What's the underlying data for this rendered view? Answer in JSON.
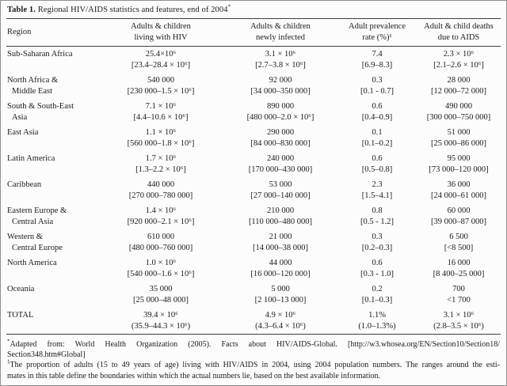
{
  "colors": {
    "ink": "#1b1b1b",
    "rule": "#3e3e3e",
    "background": "#fcfcfc",
    "border": "#8f8f8f"
  },
  "title": {
    "label": "Table 1.",
    "text": " Regional HIV/AIDS statistics and features, end of 2004",
    "marker": "*"
  },
  "columns": [
    {
      "lines": [
        "Region"
      ]
    },
    {
      "lines": [
        "Adults & children",
        "living with HIV"
      ]
    },
    {
      "lines": [
        "Adults & children",
        "newly infected"
      ]
    },
    {
      "lines": [
        "Adult prevalence",
        "rate (%)¹"
      ]
    },
    {
      "lines": [
        "Adult & child deaths",
        "due to AIDS"
      ]
    }
  ],
  "table": {
    "rows": [
      {
        "region": [
          "Sub-Saharan Africa"
        ],
        "living": [
          "25.4×10⁶",
          "[23.4–28.4 × 10⁶]"
        ],
        "infected": [
          "3.1 × 10⁶",
          "[2.7–3.8 × 10⁶]"
        ],
        "prevalence": [
          "7.4",
          "[6.9–8.3]"
        ],
        "deaths": [
          "2.3 × 10⁶",
          "[2.1–2.6 × 10⁶]"
        ]
      },
      {
        "region": [
          "North Africa &",
          "Middle East"
        ],
        "living": [
          "540 000",
          "[230 000–1.5 × 10⁶]"
        ],
        "infected": [
          "92 000",
          "[34 000–350 000]"
        ],
        "prevalence": [
          "0.3",
          "[0.1 - 0.7]"
        ],
        "deaths": [
          "28 000",
          "[12 000–72 000]"
        ]
      },
      {
        "region": [
          "South & South-East",
          "Asia"
        ],
        "living": [
          "7.1 × 10⁶",
          "[4.4–10.6 × 10⁶]"
        ],
        "infected": [
          "890 000",
          "[480 000–2.0 × 10⁶]"
        ],
        "prevalence": [
          "0.6",
          "[0.4–0.9]"
        ],
        "deaths": [
          "490 000",
          "[300 000–750 000]"
        ]
      },
      {
        "region": [
          "East Asia"
        ],
        "living": [
          "1.1 × 10⁶",
          "[560 000–1.8 × 10⁶]"
        ],
        "infected": [
          "290 000",
          "[84 000–830 000]"
        ],
        "prevalence": [
          "0.1",
          "[0.1–0.2]"
        ],
        "deaths": [
          "51 000",
          "[25 000–86 000]"
        ]
      },
      {
        "region": [
          "Latin America"
        ],
        "living": [
          "1.7 × 10⁶",
          "[1.3–2.2 × 10⁶]"
        ],
        "infected": [
          "240 000",
          "[170 000–430 000]"
        ],
        "prevalence": [
          "0.6",
          "[0.5–0.8]"
        ],
        "deaths": [
          "95 000",
          "[73 000–120 000]"
        ]
      },
      {
        "region": [
          "Caribbean"
        ],
        "living": [
          "440 000",
          "[270 000–780 000]"
        ],
        "infected": [
          "53 000",
          "[27 000–140 000]"
        ],
        "prevalence": [
          "2.3",
          "[1.5–4.1]"
        ],
        "deaths": [
          "36 000",
          "[24 000–61 000]"
        ]
      },
      {
        "region": [
          "Eastern Europe &",
          "Central Asia"
        ],
        "living": [
          "1.4 × 10⁶",
          "[920 000–2.1 × 10⁶]"
        ],
        "infected": [
          "210 000",
          "[110 000–480 000]"
        ],
        "prevalence": [
          "0.8",
          "[0.5 - 1.2]"
        ],
        "deaths": [
          "60 000",
          "[39 000–87 000]"
        ]
      },
      {
        "region": [
          "Western &",
          "Central Europe"
        ],
        "living": [
          "610 000",
          "[480 000–760 000]"
        ],
        "infected": [
          "21 000",
          "[14 000–38 000]"
        ],
        "prevalence": [
          "0.3",
          "[0.2–0.3]"
        ],
        "deaths": [
          "6 500",
          "[<8 500]"
        ]
      },
      {
        "region": [
          "North America"
        ],
        "living": [
          "1.0 × 10⁶",
          "[540 000–1.6 × 10⁶]"
        ],
        "infected": [
          "44 000",
          "[16 000–120 000]"
        ],
        "prevalence": [
          "0.6",
          "[0.3 - 1.0]"
        ],
        "deaths": [
          "16 000",
          "[8 400–25 000]"
        ]
      },
      {
        "region": [
          "Oceania"
        ],
        "living": [
          "35 000",
          "[25 000–48 000]"
        ],
        "infected": [
          "5 000",
          "[2 100–13 000]"
        ],
        "prevalence": [
          "0.2",
          "[0.1–0.3]"
        ],
        "deaths": [
          "700",
          "<1 700"
        ]
      },
      {
        "region": [
          "TOTAL"
        ],
        "living": [
          "39.4 × 10⁶",
          "(35.9–44.3 × 10⁶)"
        ],
        "infected": [
          "4.9 × 10⁶",
          "(4.3–6.4 × 10⁶)"
        ],
        "prevalence": [
          "1.1%",
          "(1.0–1.3%)"
        ],
        "deaths": [
          "3.1 × 10⁶",
          "(2.8–3.5 × 10⁶)"
        ]
      }
    ]
  },
  "footnotes": [
    {
      "marker": "*",
      "lines": [
        "Adapted from: World Health Organization (2005). Facts about HIV/AIDS-Global. [http://w3.whosea.org/EN/Section10/Section18/",
        "Section348.htm#Global]"
      ]
    },
    {
      "marker": "1",
      "lines": [
        "The proportion of adults (15 to 49 years of age) living with HIV/AIDS in 2004, using 2004 population numbers. The ranges around the esti-",
        "mates in this table define the boundaries within which the actual numbers lie, based on the best available information."
      ]
    }
  ]
}
